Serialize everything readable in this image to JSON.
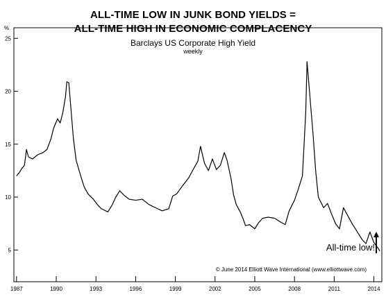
{
  "chart_data": {
    "type": "line",
    "title": "ALL-TIME LOW IN JUNK BOND YIELDS =",
    "subtitle_bold": "ALL-TIME HIGH IN ECONOMIC COMPLACENCY",
    "subtitle": "Barclays US Corporate High Yield",
    "frequency": "weekly",
    "ylabel": "%",
    "xlabel": "",
    "x_ticks": [
      "1987",
      "1990",
      "1993",
      "1996",
      "1999",
      "2002",
      "2005",
      "2008",
      "2011",
      "2014"
    ],
    "y_ticks": [
      "5",
      "10",
      "15",
      "20",
      "25"
    ],
    "xlim": [
      1986.8,
      2014.6
    ],
    "ylim": [
      2,
      26
    ],
    "grid": false,
    "series": [
      {
        "values": [
          [
            1987.0,
            12.0
          ],
          [
            1987.2,
            12.3
          ],
          [
            1987.4,
            12.7
          ],
          [
            1987.6,
            13.0
          ],
          [
            1987.75,
            14.5
          ],
          [
            1987.9,
            13.8
          ],
          [
            1988.2,
            13.6
          ],
          [
            1988.6,
            14.0
          ],
          [
            1989.0,
            14.2
          ],
          [
            1989.3,
            14.5
          ],
          [
            1989.6,
            15.5
          ],
          [
            1989.8,
            16.5
          ],
          [
            1990.1,
            17.4
          ],
          [
            1990.3,
            17.0
          ],
          [
            1990.5,
            18.0
          ],
          [
            1990.7,
            19.5
          ],
          [
            1990.8,
            20.9
          ],
          [
            1990.95,
            20.8
          ],
          [
            1991.1,
            18.5
          ],
          [
            1991.3,
            15.5
          ],
          [
            1991.5,
            13.5
          ],
          [
            1991.8,
            12.2
          ],
          [
            1992.1,
            11.0
          ],
          [
            1992.4,
            10.3
          ],
          [
            1992.8,
            9.8
          ],
          [
            1993.1,
            9.3
          ],
          [
            1993.4,
            8.9
          ],
          [
            1993.9,
            8.6
          ],
          [
            1994.2,
            9.2
          ],
          [
            1994.5,
            10.0
          ],
          [
            1994.8,
            10.6
          ],
          [
            1995.1,
            10.2
          ],
          [
            1995.5,
            9.8
          ],
          [
            1996.0,
            9.7
          ],
          [
            1996.5,
            9.8
          ],
          [
            1997.0,
            9.3
          ],
          [
            1997.5,
            9.0
          ],
          [
            1998.0,
            8.7
          ],
          [
            1998.5,
            8.9
          ],
          [
            1998.8,
            10.1
          ],
          [
            1999.1,
            10.3
          ],
          [
            1999.5,
            11.0
          ],
          [
            2000.0,
            11.8
          ],
          [
            2000.3,
            12.5
          ],
          [
            2000.7,
            13.4
          ],
          [
            2000.9,
            14.8
          ],
          [
            2001.2,
            13.2
          ],
          [
            2001.5,
            12.5
          ],
          [
            2001.8,
            13.6
          ],
          [
            2002.1,
            12.6
          ],
          [
            2002.4,
            13.0
          ],
          [
            2002.7,
            14.2
          ],
          [
            2002.9,
            13.5
          ],
          [
            2003.2,
            11.8
          ],
          [
            2003.4,
            10.2
          ],
          [
            2003.6,
            9.3
          ],
          [
            2003.9,
            8.6
          ],
          [
            2004.1,
            8.0
          ],
          [
            2004.3,
            7.3
          ],
          [
            2004.6,
            7.4
          ],
          [
            2005.0,
            7.0
          ],
          [
            2005.3,
            7.6
          ],
          [
            2005.6,
            8.0
          ],
          [
            2006.0,
            8.1
          ],
          [
            2006.5,
            8.0
          ],
          [
            2007.0,
            7.6
          ],
          [
            2007.3,
            7.4
          ],
          [
            2007.6,
            8.7
          ],
          [
            2008.0,
            9.7
          ],
          [
            2008.3,
            10.8
          ],
          [
            2008.6,
            12.0
          ],
          [
            2008.85,
            18.0
          ],
          [
            2008.95,
            22.8
          ],
          [
            2009.2,
            19.0
          ],
          [
            2009.4,
            16.0
          ],
          [
            2009.6,
            12.5
          ],
          [
            2009.8,
            10.0
          ],
          [
            2010.2,
            9.0
          ],
          [
            2010.5,
            9.4
          ],
          [
            2010.8,
            8.4
          ],
          [
            2011.1,
            7.5
          ],
          [
            2011.4,
            7.0
          ],
          [
            2011.7,
            9.0
          ],
          [
            2012.0,
            8.3
          ],
          [
            2012.4,
            7.4
          ],
          [
            2012.8,
            6.6
          ],
          [
            2013.1,
            6.0
          ],
          [
            2013.4,
            5.6
          ],
          [
            2013.7,
            6.7
          ],
          [
            2014.0,
            5.7
          ],
          [
            2014.3,
            5.2
          ],
          [
            2014.45,
            4.9
          ]
        ]
      }
    ],
    "annotation": "All-time low!",
    "source": "© June 2014 Elliott Wave International (www.elliottwave.com)"
  }
}
